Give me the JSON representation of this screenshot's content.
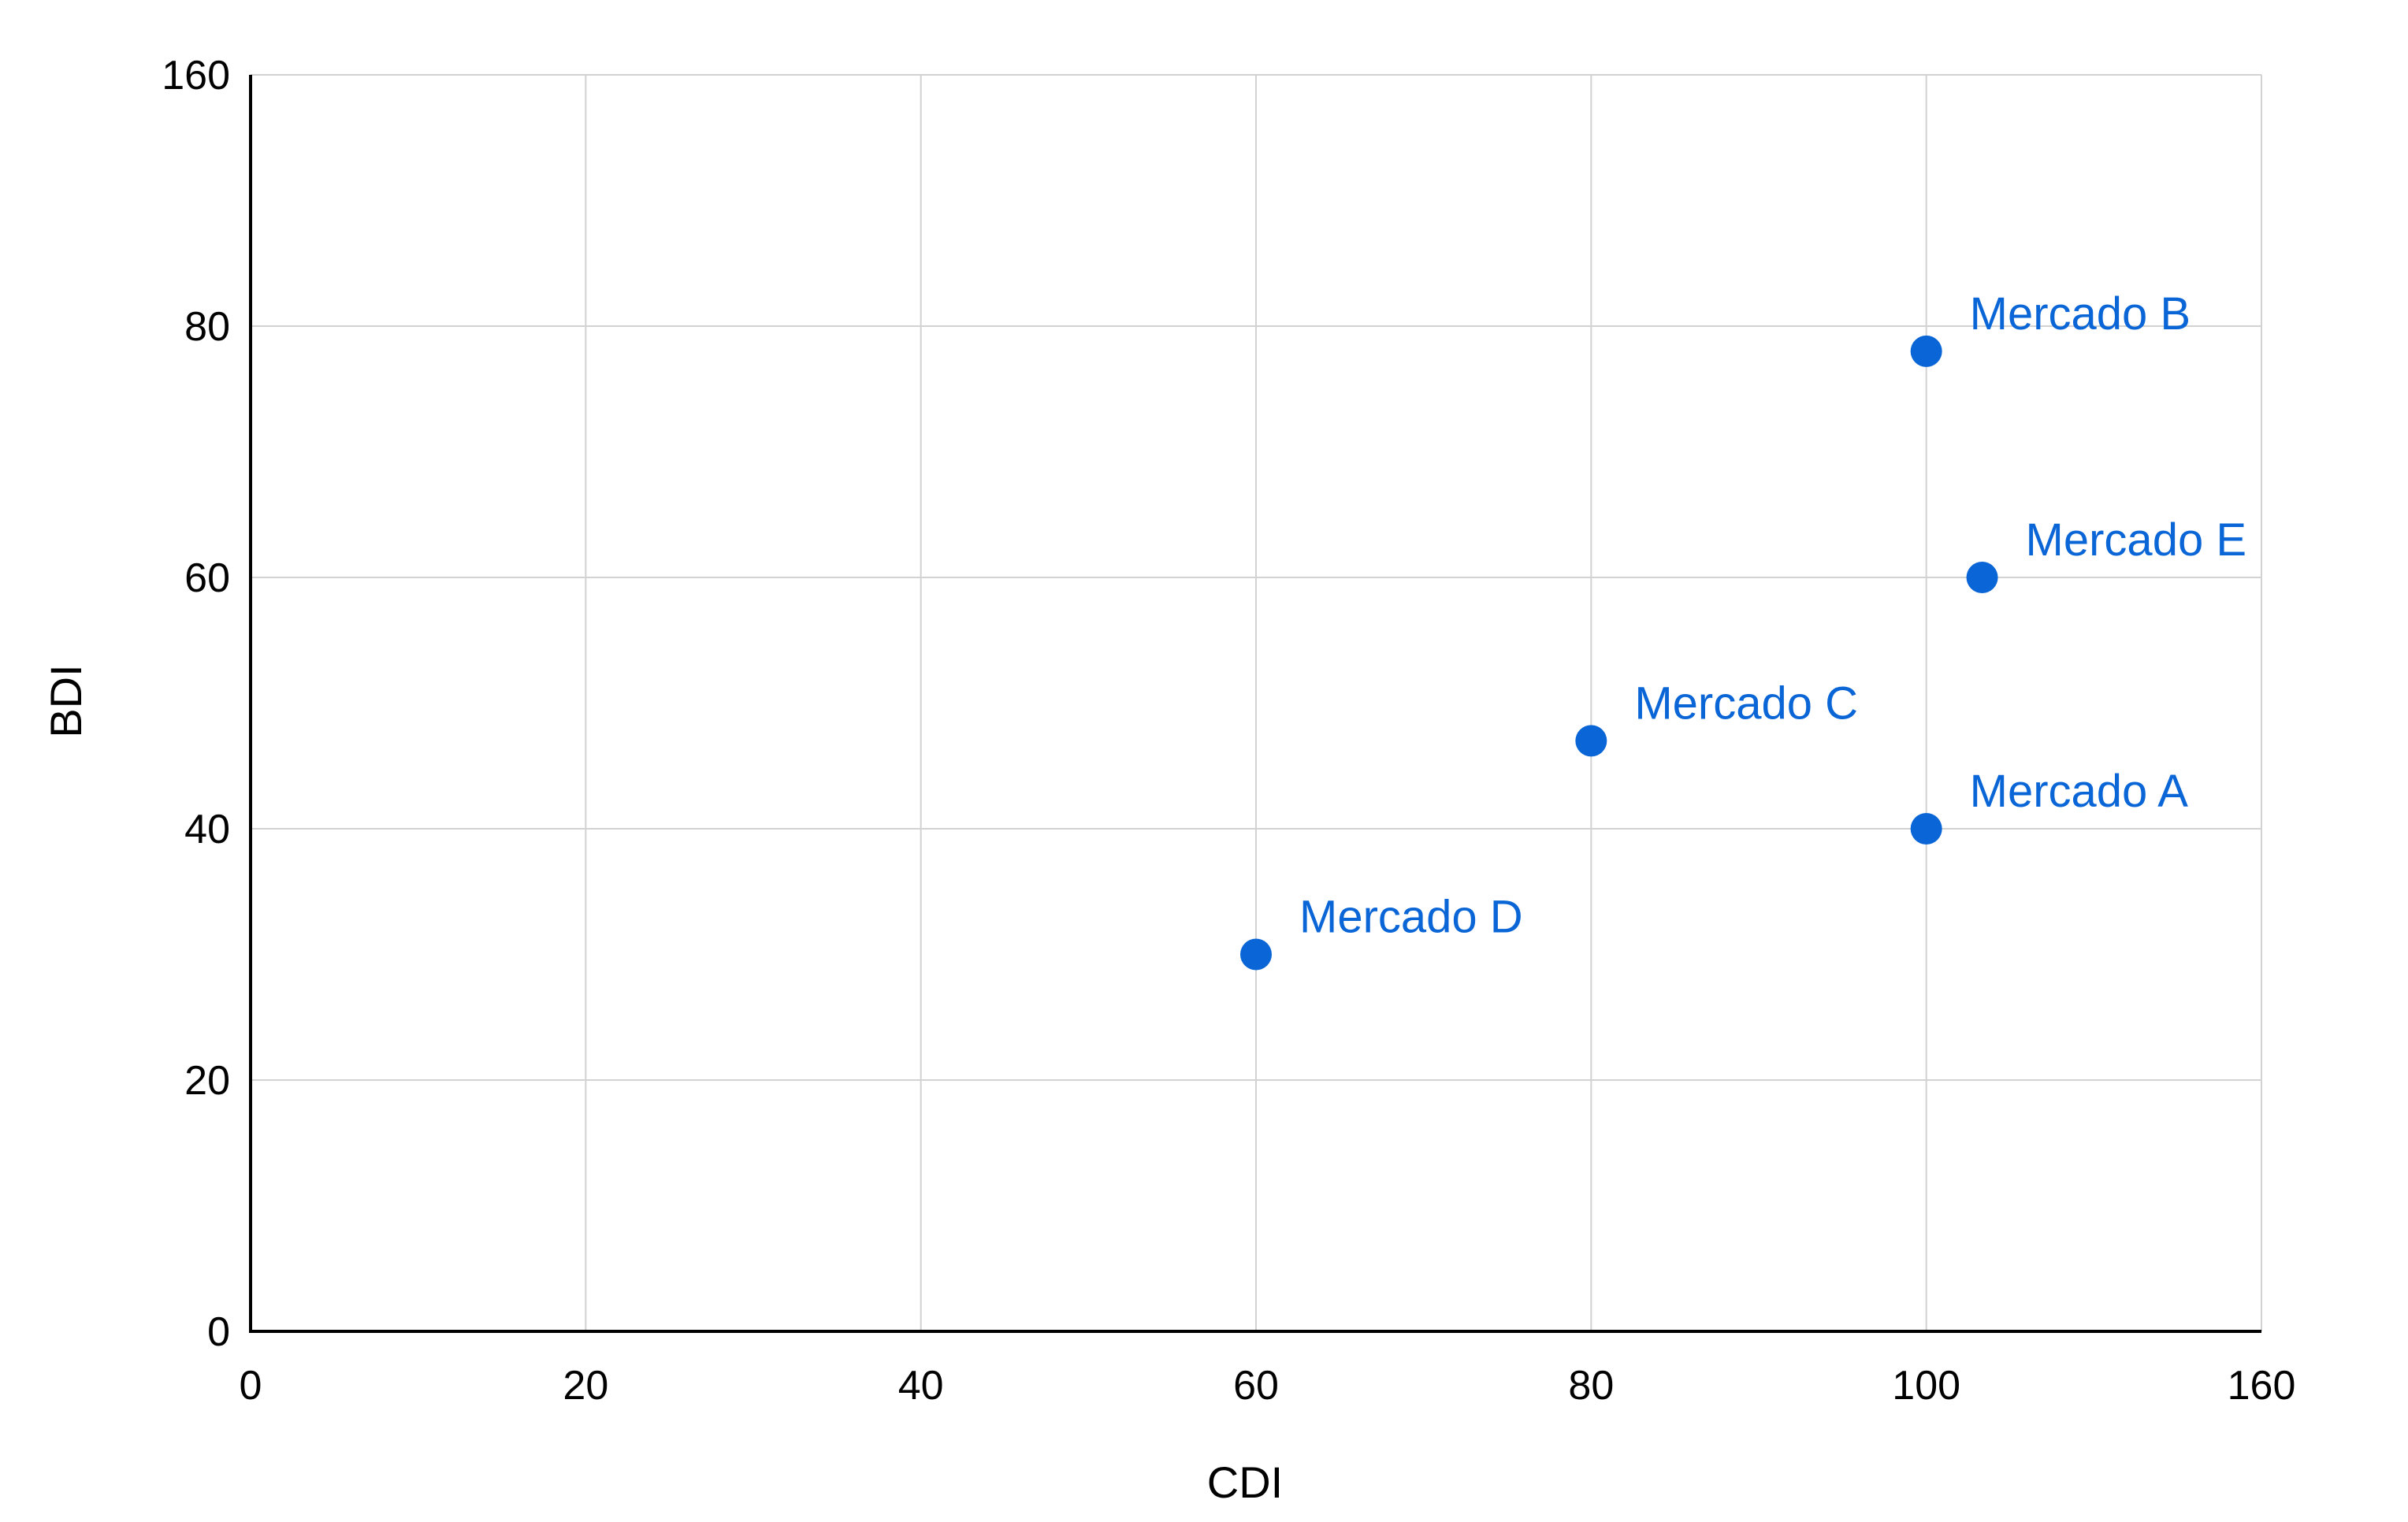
{
  "chart_data": {
    "type": "scatter",
    "title": "",
    "xlabel": "CDI",
    "ylabel": "BDI",
    "xlim": [
      0,
      160
    ],
    "ylim": [
      0,
      160
    ],
    "x_ticks": [
      0,
      20,
      40,
      60,
      80,
      100,
      160
    ],
    "y_ticks": [
      0,
      20,
      40,
      60,
      80,
      160
    ],
    "grid": true,
    "legend": "none",
    "point_color": "#0a66d6",
    "label_color": "#0a66d6",
    "points": [
      {
        "label": "Mercado A",
        "x": 100,
        "y": 40
      },
      {
        "label": "Mercado B",
        "x": 100,
        "y": 78
      },
      {
        "label": "Mercado C",
        "x": 80,
        "y": 47
      },
      {
        "label": "Mercado D",
        "x": 60,
        "y": 30
      },
      {
        "label": "Mercado E",
        "x": 110,
        "y": 60
      }
    ]
  }
}
